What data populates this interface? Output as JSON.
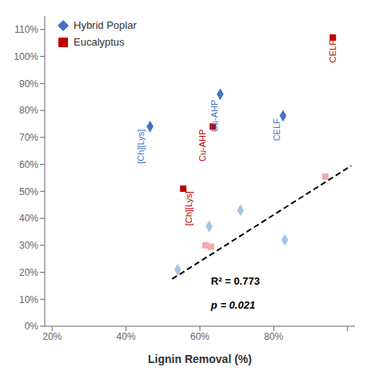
{
  "chart_data": {
    "type": "scatter",
    "xlabel": "Lignin Removal (%)",
    "xlim": [
      0.18,
      1.02
    ],
    "ylim": [
      0.0,
      1.15
    ],
    "xticks": [
      {
        "value": 0.2,
        "label": "20%"
      },
      {
        "value": 0.4,
        "label": "40%"
      },
      {
        "value": 0.6,
        "label": "60%"
      },
      {
        "value": 0.8,
        "label": "80%"
      },
      {
        "value": 1.0,
        "label": ""
      }
    ],
    "yticks": [
      {
        "value": 0.0,
        "label": "0%"
      },
      {
        "value": 0.1,
        "label": "10%"
      },
      {
        "value": 0.2,
        "label": "20%"
      },
      {
        "value": 0.3,
        "label": "30%"
      },
      {
        "value": 0.4,
        "label": "40%"
      },
      {
        "value": 0.5,
        "label": "50%"
      },
      {
        "value": 0.6,
        "label": "60%"
      },
      {
        "value": 0.7,
        "label": "70%"
      },
      {
        "value": 0.8,
        "label": "80%"
      },
      {
        "value": 0.9,
        "label": "90%"
      },
      {
        "value": 1.0,
        "label": "100%"
      },
      {
        "value": 1.1,
        "label": "110%"
      }
    ],
    "grid": false,
    "legend": "upper left",
    "series": [
      {
        "name": "Hybrid Poplar",
        "color": "#4472C4",
        "marker": "diamond",
        "x": [
          0.465,
          0.655,
          0.825
        ],
        "values": [
          0.74,
          0.86,
          0.78
        ]
      },
      {
        "color": "#A9C4E4",
        "marker": "diamond",
        "x": [
          0.54,
          0.625,
          0.71,
          0.83
        ],
        "values": [
          0.21,
          0.37,
          0.43,
          0.32
        ]
      },
      {
        "name": "Eucalyptus",
        "color": "#C00000",
        "marker": "square",
        "x": [
          0.555,
          0.635,
          0.96
        ],
        "values": [
          0.51,
          0.74,
          1.07
        ]
      },
      {
        "color": "#F4A9A8",
        "marker": "square",
        "x": [
          0.615,
          0.63,
          0.94
        ],
        "values": [
          0.3,
          0.295,
          0.555
        ]
      },
      {
        "type": "line",
        "color": "#000000",
        "line_style": "dashed",
        "x": [
          0.525,
          1.01
        ],
        "values": [
          0.175,
          0.595
        ]
      }
    ],
    "annotations": [
      {
        "text": "[Ch][Lys]",
        "x": 0.44,
        "y": 0.73,
        "color": "#4472C4"
      },
      {
        "text": "Cu-AHP",
        "x": 0.64,
        "y": 0.84,
        "color": "#4472C4"
      },
      {
        "text": "CELF",
        "x": 0.808,
        "y": 0.77,
        "color": "#4472C4"
      },
      {
        "text": "[Ch][Lys]",
        "x": 0.57,
        "y": 0.5,
        "color": "#C00000"
      },
      {
        "text": "Cu-AHP",
        "x": 0.607,
        "y": 0.73,
        "color": "#C00000"
      },
      {
        "text": "CELF",
        "x": 0.96,
        "y": 1.06,
        "color": "#C00000"
      },
      {
        "text": "R² = 0.773",
        "x": 0.63,
        "y": 0.155
      },
      {
        "text": "p = 0.021",
        "x": 0.63,
        "y": 0.095
      }
    ]
  }
}
